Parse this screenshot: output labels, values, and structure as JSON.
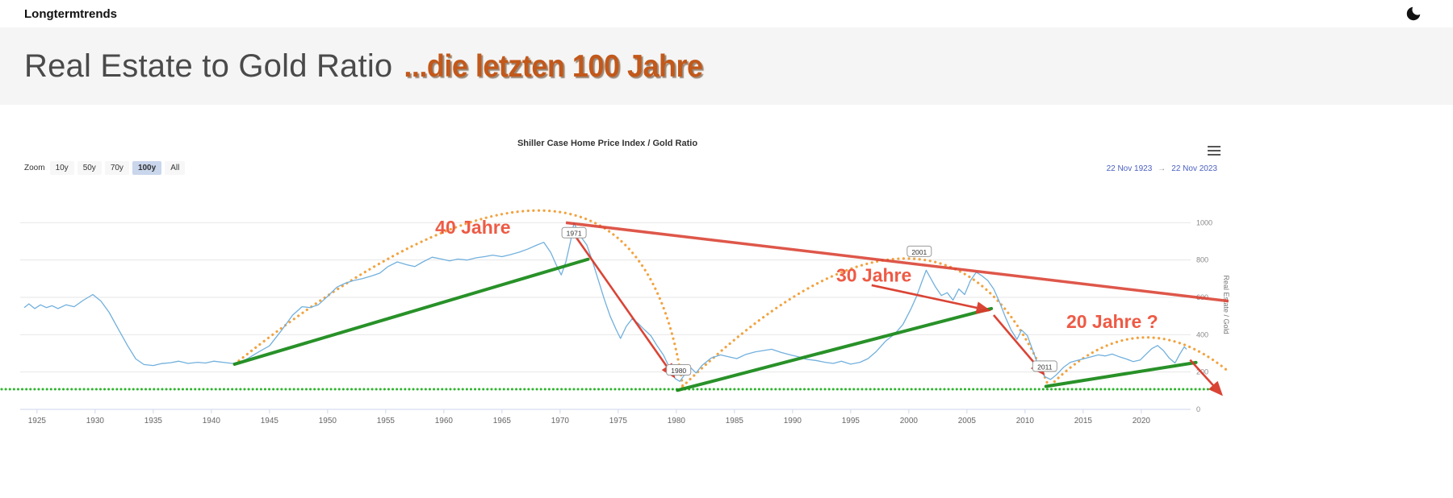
{
  "navbar": {
    "brand": "Longtermtrends"
  },
  "header": {
    "title": "Real Estate to Gold Ratio",
    "subtitle": "...die letzten 100 Jahre"
  },
  "chart": {
    "zoom_label": "Zoom",
    "range_buttons": [
      {
        "label": "10y",
        "selected": false
      },
      {
        "label": "50y",
        "selected": false
      },
      {
        "label": "70y",
        "selected": false
      },
      {
        "label": "100y",
        "selected": true
      },
      {
        "label": "All",
        "selected": false
      }
    ],
    "date_from": "22 Nov 1923",
    "date_separator": "→",
    "date_to": "22 Nov 2023"
  },
  "chart_data": {
    "type": "line",
    "title": "Shiller Case Home Price Index / Gold Ratio",
    "ylabel": "Real Estate / Gold",
    "xlim": [
      1923.9,
      2023.9
    ],
    "ylim": [
      0,
      1200
    ],
    "x_ticks": [
      1925,
      1930,
      1935,
      1940,
      1945,
      1950,
      1955,
      1960,
      1965,
      1970,
      1975,
      1980,
      1985,
      1990,
      1995,
      2000,
      2005,
      2010,
      2015,
      2020
    ],
    "y_ticks": [
      0,
      200,
      400,
      600,
      800,
      1000
    ],
    "grid": true,
    "legend": "none",
    "series": [
      {
        "name": "Shiller Case Home Price Index / Gold Ratio",
        "color": "#71b0dd",
        "points": [
          [
            1923.9,
            545
          ],
          [
            1924.3,
            565
          ],
          [
            1924.8,
            540
          ],
          [
            1925.3,
            560
          ],
          [
            1925.8,
            545
          ],
          [
            1926.3,
            555
          ],
          [
            1926.8,
            540
          ],
          [
            1927.5,
            560
          ],
          [
            1928.2,
            550
          ],
          [
            1929,
            585
          ],
          [
            1929.8,
            615
          ],
          [
            1930.5,
            580
          ],
          [
            1931.2,
            520
          ],
          [
            1932,
            430
          ],
          [
            1932.8,
            340
          ],
          [
            1933.5,
            270
          ],
          [
            1934.2,
            240
          ],
          [
            1935,
            235
          ],
          [
            1935.7,
            245
          ],
          [
            1936.5,
            250
          ],
          [
            1937.2,
            258
          ],
          [
            1938,
            246
          ],
          [
            1938.8,
            252
          ],
          [
            1939.5,
            248
          ],
          [
            1940.2,
            258
          ],
          [
            1941,
            252
          ],
          [
            1941.8,
            246
          ],
          [
            1942.5,
            252
          ],
          [
            1943.2,
            275
          ],
          [
            1944,
            305
          ],
          [
            1945,
            340
          ],
          [
            1946,
            420
          ],
          [
            1947,
            505
          ],
          [
            1947.8,
            550
          ],
          [
            1948.5,
            545
          ],
          [
            1949.2,
            560
          ],
          [
            1950,
            605
          ],
          [
            1950.8,
            655
          ],
          [
            1951.5,
            675
          ],
          [
            1952.2,
            690
          ],
          [
            1953,
            700
          ],
          [
            1953.8,
            715
          ],
          [
            1954.5,
            730
          ],
          [
            1955.2,
            765
          ],
          [
            1956,
            790
          ],
          [
            1956.8,
            775
          ],
          [
            1957.5,
            765
          ],
          [
            1958.2,
            790
          ],
          [
            1959,
            815
          ],
          [
            1959.8,
            805
          ],
          [
            1960.5,
            795
          ],
          [
            1961.2,
            805
          ],
          [
            1962,
            800
          ],
          [
            1962.8,
            812
          ],
          [
            1963.5,
            818
          ],
          [
            1964.2,
            826
          ],
          [
            1965,
            818
          ],
          [
            1965.8,
            830
          ],
          [
            1966.5,
            842
          ],
          [
            1967.2,
            858
          ],
          [
            1968,
            880
          ],
          [
            1968.6,
            895
          ],
          [
            1969.2,
            840
          ],
          [
            1969.7,
            770
          ],
          [
            1970.1,
            720
          ],
          [
            1970.5,
            790
          ],
          [
            1970.9,
            900
          ],
          [
            1971.2,
            1000
          ],
          [
            1971.5,
            955
          ],
          [
            1971.9,
            915
          ],
          [
            1972.3,
            880
          ],
          [
            1972.8,
            790
          ],
          [
            1973.3,
            690
          ],
          [
            1973.8,
            590
          ],
          [
            1974.3,
            500
          ],
          [
            1974.8,
            430
          ],
          [
            1975.2,
            380
          ],
          [
            1975.7,
            445
          ],
          [
            1976.2,
            485
          ],
          [
            1976.7,
            462
          ],
          [
            1977.2,
            430
          ],
          [
            1977.8,
            395
          ],
          [
            1978.3,
            345
          ],
          [
            1978.9,
            290
          ],
          [
            1979.4,
            225
          ],
          [
            1979.9,
            165
          ],
          [
            1980.3,
            150
          ],
          [
            1980.7,
            185
          ],
          [
            1981.2,
            225
          ],
          [
            1981.7,
            195
          ],
          [
            1982.2,
            235
          ],
          [
            1983,
            275
          ],
          [
            1983.8,
            292
          ],
          [
            1984.5,
            282
          ],
          [
            1985.2,
            272
          ],
          [
            1986,
            295
          ],
          [
            1986.8,
            308
          ],
          [
            1987.5,
            315
          ],
          [
            1988.2,
            322
          ],
          [
            1989,
            305
          ],
          [
            1989.8,
            292
          ],
          [
            1990.5,
            282
          ],
          [
            1991.2,
            268
          ],
          [
            1992,
            262
          ],
          [
            1992.8,
            252
          ],
          [
            1993.5,
            246
          ],
          [
            1994.2,
            258
          ],
          [
            1995,
            242
          ],
          [
            1995.8,
            252
          ],
          [
            1996.5,
            272
          ],
          [
            1997.2,
            310
          ],
          [
            1998,
            365
          ],
          [
            1998.8,
            405
          ],
          [
            1999.5,
            455
          ],
          [
            2000.2,
            540
          ],
          [
            2000.7,
            610
          ],
          [
            2001.1,
            680
          ],
          [
            2001.5,
            745
          ],
          [
            2001.9,
            700
          ],
          [
            2002.3,
            655
          ],
          [
            2002.8,
            610
          ],
          [
            2003.3,
            625
          ],
          [
            2003.8,
            585
          ],
          [
            2004.3,
            645
          ],
          [
            2004.8,
            615
          ],
          [
            2005.3,
            690
          ],
          [
            2005.8,
            735
          ],
          [
            2006.3,
            715
          ],
          [
            2006.8,
            690
          ],
          [
            2007.3,
            645
          ],
          [
            2007.8,
            575
          ],
          [
            2008.3,
            495
          ],
          [
            2008.8,
            425
          ],
          [
            2009.3,
            375
          ],
          [
            2009.7,
            425
          ],
          [
            2010.2,
            395
          ],
          [
            2010.7,
            310
          ],
          [
            2011.2,
            225
          ],
          [
            2011.7,
            175
          ],
          [
            2012.2,
            160
          ],
          [
            2012.7,
            185
          ],
          [
            2013.3,
            225
          ],
          [
            2013.9,
            252
          ],
          [
            2014.5,
            262
          ],
          [
            2015.1,
            272
          ],
          [
            2015.7,
            282
          ],
          [
            2016.3,
            292
          ],
          [
            2016.9,
            286
          ],
          [
            2017.5,
            296
          ],
          [
            2018.1,
            282
          ],
          [
            2018.7,
            270
          ],
          [
            2019.3,
            256
          ],
          [
            2019.9,
            264
          ],
          [
            2020.4,
            295
          ],
          [
            2020.9,
            325
          ],
          [
            2021.4,
            342
          ],
          [
            2021.9,
            315
          ],
          [
            2022.4,
            275
          ],
          [
            2022.9,
            248
          ],
          [
            2023.3,
            295
          ],
          [
            2023.7,
            335
          ],
          [
            2023.9,
            322
          ]
        ]
      }
    ],
    "annotations": {
      "support_line_value": 108,
      "support_color": "#2db52d",
      "arc_color": "#f2a340",
      "trend_color": "#1d8c1d",
      "red_color": "#d93a2b",
      "label_color": "#ee5a45",
      "arcs": [
        {
          "label": "40 Jahre",
          "from": [
            1942,
            242
          ],
          "apex": [
            1968.9,
            1064
          ],
          "to": [
            1980.6,
            102
          ],
          "label_at": [
            1962.5,
            940
          ]
        },
        {
          "label": "30 Jahre",
          "from": [
            1980.2,
            102
          ],
          "apex": [
            1999.6,
            808
          ],
          "to": [
            2012,
            128
          ],
          "label_at": [
            1997,
            685
          ]
        },
        {
          "label": "20 Jahre ?",
          "from": [
            2012.2,
            128
          ],
          "apex": [
            2019.7,
            383
          ],
          "to": [
            2027.3,
            213
          ],
          "label_at": [
            2017.5,
            435
          ]
        }
      ],
      "trendlines": [
        [
          [
            1942,
            242
          ],
          [
            1972.4,
            804
          ]
        ],
        [
          [
            1980.1,
            102
          ],
          [
            2007.1,
            540
          ]
        ],
        [
          [
            2011.8,
            123
          ],
          [
            2024.7,
            251
          ]
        ]
      ],
      "resistance_line": [
        [
          1970.5,
          1000
        ],
        [
          2027.5,
          580
        ]
      ],
      "arrows": [
        [
          [
            1971.4,
            920
          ],
          [
            1979.8,
            175
          ]
        ],
        [
          [
            1996.8,
            665
          ],
          [
            2006.9,
            530
          ]
        ],
        [
          [
            2007.3,
            505
          ],
          [
            2011.6,
            190
          ]
        ],
        [
          [
            2024.2,
            265
          ],
          [
            2026.9,
            80
          ]
        ]
      ],
      "year_flags": [
        {
          "text": "1971",
          "at": [
            1971.2,
            940
          ]
        },
        {
          "text": "1980",
          "at": [
            1980.2,
            205
          ]
        },
        {
          "text": "2001",
          "at": [
            2000.9,
            840
          ]
        },
        {
          "text": "2011",
          "at": [
            2011.7,
            225
          ]
        }
      ]
    }
  }
}
